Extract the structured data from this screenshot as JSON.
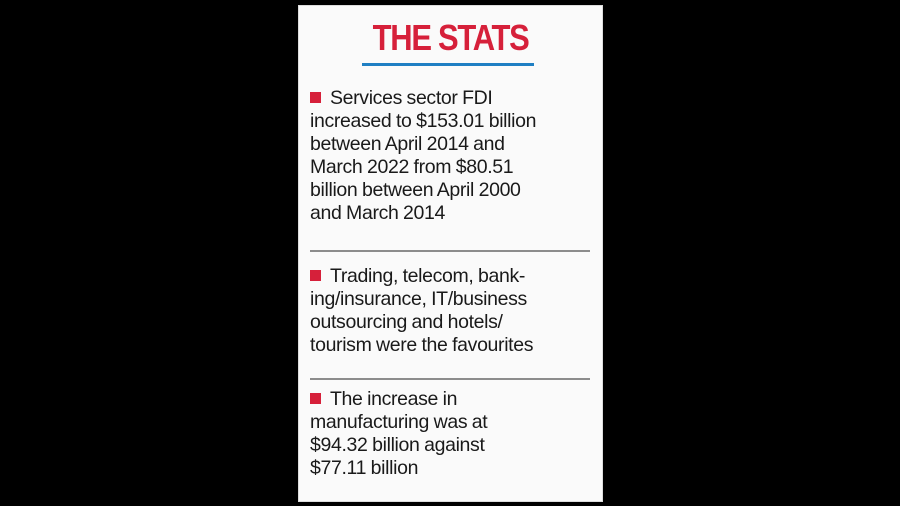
{
  "panel": {
    "title": "THE STATS",
    "accent_color": "#d6203a",
    "underline_color": "#1f7fc3",
    "items": [
      {
        "lines": [
          "Services sector FDI",
          "increased to $153.01 billion",
          "between April 2014 and",
          "March 2022 from $80.51",
          "billion between April 2000",
          "and March 2014"
        ]
      },
      {
        "lines": [
          "Trading, telecom, bank-",
          "ing/insurance, IT/business",
          "outsourcing and hotels/",
          "tourism were the favourites"
        ]
      },
      {
        "lines": [
          "The increase in",
          "manufacturing was at",
          "$94.32 billion against",
          "$77.11 billion"
        ]
      }
    ]
  }
}
